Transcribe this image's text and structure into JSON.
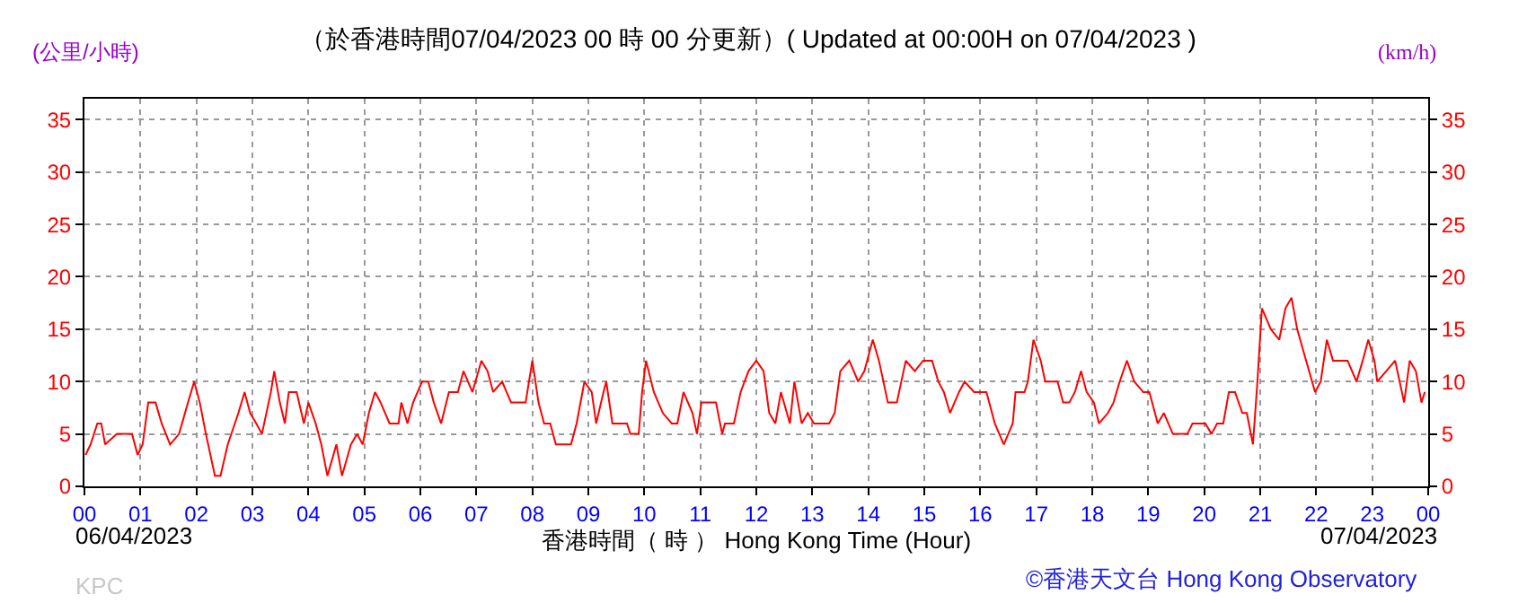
{
  "chart_data": {
    "type": "line",
    "title": "（於香港時間07/04/2023 00 時 00 分更新）( Updated at 00:00H on 07/04/2023 )",
    "xlabel": "香港時間（ 時 ） Hong Kong Time (Hour)",
    "ylabel": "(公里/小時)",
    "y2label": "(km/h)",
    "annotations": [
      "06/04/2023",
      "07/04/2023",
      "KPC",
      "©香港天文台 Hong Kong Observatory"
    ],
    "x": [
      0.02,
      0.11,
      0.23,
      0.3,
      0.37,
      0.58,
      0.85,
      0.95,
      1.04,
      1.14,
      1.27,
      1.38,
      1.53,
      1.69,
      1.85,
      1.96,
      2.06,
      2.17,
      2.33,
      2.43,
      2.56,
      2.75,
      2.86,
      2.96,
      3.07,
      3.17,
      3.33,
      3.39,
      3.49,
      3.58,
      3.65,
      3.79,
      3.92,
      4,
      4.13,
      4.23,
      4.34,
      4.5,
      4.6,
      4.76,
      4.87,
      4.97,
      5.08,
      5.19,
      5.29,
      5.45,
      5.61,
      5.66,
      5.77,
      5.87,
      6.03,
      6.14,
      6.24,
      6.37,
      6.51,
      6.67,
      6.77,
      6.93,
      7.09,
      7.2,
      7.3,
      7.46,
      7.62,
      7.88,
      8,
      8.11,
      8.21,
      8.32,
      8.42,
      8.69,
      8.79,
      8.93,
      9.06,
      9.14,
      9.27,
      9.32,
      9.43,
      9.69,
      9.75,
      9.9,
      9.96,
      10.03,
      10.17,
      10.33,
      10.49,
      10.59,
      10.7,
      10.86,
      10.94,
      11.02,
      11.28,
      11.39,
      11.44,
      11.6,
      11.72,
      11.86,
      12,
      12.13,
      12.23,
      12.34,
      12.44,
      12.6,
      12.68,
      12.81,
      12.92,
      13.03,
      13.3,
      13.4,
      13.5,
      13.66,
      13.82,
      13.93,
      14.08,
      14.19,
      14.35,
      14.51,
      14.67,
      14.83,
      14.98,
      15.14,
      15.25,
      15.35,
      15.46,
      15.62,
      15.72,
      15.89,
      16,
      16.11,
      16.26,
      16.42,
      16.58,
      16.63,
      16.79,
      16.85,
      16.95,
      17.08,
      17.16,
      17.38,
      17.48,
      17.59,
      17.69,
      17.8,
      17.9,
      18.03,
      18.12,
      18.28,
      18.38,
      18.49,
      18.62,
      18.75,
      18.91,
      19.02,
      19.17,
      19.28,
      19.44,
      19.7,
      19.79,
      20.02,
      20.13,
      20.23,
      20.34,
      20.44,
      20.55,
      20.68,
      20.76,
      20.87,
      20.95,
      21.03,
      21.19,
      21.34,
      21.45,
      21.56,
      21.66,
      21.82,
      21.98,
      22.08,
      22.19,
      22.3,
      22.56,
      22.72,
      22.83,
      22.93,
      23.04,
      23.09,
      23.25,
      23.41,
      23.57,
      23.67,
      23.78,
      23.88,
      23.94
    ],
    "series": [
      {
        "color": "#ff0000",
        "values": [
          3,
          4,
          6,
          6,
          4,
          5,
          5,
          3,
          4,
          8,
          8,
          6,
          4,
          5,
          8,
          10,
          8,
          5,
          1,
          1,
          4,
          7,
          9,
          7,
          6,
          5,
          9,
          11,
          8,
          6,
          9,
          9,
          6,
          8,
          6,
          4,
          1,
          4,
          1,
          4,
          5,
          4,
          7,
          9,
          8,
          6,
          6,
          8,
          6,
          8,
          10,
          10,
          8,
          6,
          9,
          9,
          11,
          9,
          12,
          11,
          9,
          10,
          8,
          8,
          12,
          8,
          6,
          6,
          4,
          4,
          6,
          10,
          9,
          6,
          9,
          10,
          6,
          6,
          5,
          5,
          9,
          12,
          9,
          7,
          6,
          6,
          9,
          7,
          5,
          8,
          8,
          5,
          6,
          6,
          9,
          11,
          12,
          11,
          7,
          6,
          9,
          6,
          10,
          6,
          7,
          6,
          6,
          7,
          11,
          12,
          10,
          11,
          14,
          12,
          8,
          8,
          12,
          11,
          12,
          12,
          10,
          9,
          7,
          9,
          10,
          9,
          9,
          9,
          6,
          4,
          6,
          9,
          9,
          10,
          14,
          12,
          10,
          10,
          8,
          8,
          9,
          11,
          9,
          8,
          6,
          7,
          8,
          10,
          12,
          10,
          9,
          9,
          6,
          7,
          5,
          5,
          6,
          6,
          5,
          6,
          6,
          9,
          9,
          7,
          7,
          4,
          10,
          17,
          15,
          14,
          17,
          18,
          15,
          12,
          9,
          10,
          14,
          12,
          12,
          10,
          12,
          14,
          12,
          10,
          11,
          12,
          8,
          12,
          11,
          8,
          9
        ]
      }
    ],
    "xlim": [
      0,
      24
    ],
    "xticks": [
      {
        "value": 0,
        "label": "00"
      },
      {
        "value": 1,
        "label": "01"
      },
      {
        "value": 2,
        "label": "02"
      },
      {
        "value": 3,
        "label": "03"
      },
      {
        "value": 4,
        "label": "04"
      },
      {
        "value": 5,
        "label": "05"
      },
      {
        "value": 6,
        "label": "06"
      },
      {
        "value": 7,
        "label": "07"
      },
      {
        "value": 8,
        "label": "08"
      },
      {
        "value": 9,
        "label": "09"
      },
      {
        "value": 10,
        "label": "10"
      },
      {
        "value": 11,
        "label": "11"
      },
      {
        "value": 12,
        "label": "12"
      },
      {
        "value": 13,
        "label": "13"
      },
      {
        "value": 14,
        "label": "14"
      },
      {
        "value": 15,
        "label": "15"
      },
      {
        "value": 16,
        "label": "16"
      },
      {
        "value": 17,
        "label": "17"
      },
      {
        "value": 18,
        "label": "18"
      },
      {
        "value": 19,
        "label": "19"
      },
      {
        "value": 20,
        "label": "20"
      },
      {
        "value": 21,
        "label": "21"
      },
      {
        "value": 22,
        "label": "22"
      },
      {
        "value": 23,
        "label": "23"
      },
      {
        "value": 24,
        "label": "00"
      }
    ],
    "ylim": [
      0,
      37
    ],
    "yticks": [
      0,
      5,
      10,
      15,
      20,
      25,
      30,
      35
    ],
    "y2lim": [
      0,
      37
    ],
    "y2ticks": [
      0,
      5,
      10,
      15,
      20,
      25,
      30,
      35
    ],
    "grid": true,
    "marker": "none",
    "line_style": "solid"
  }
}
